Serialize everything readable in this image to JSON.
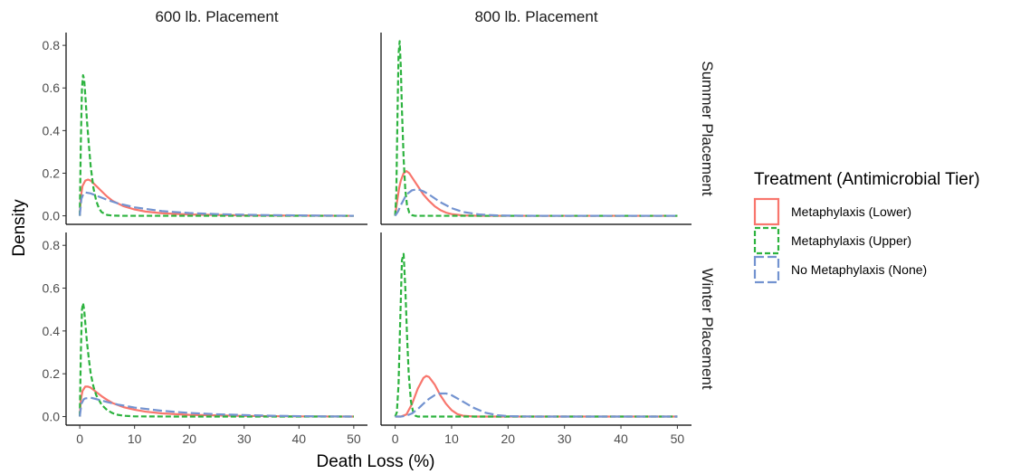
{
  "chart_data": {
    "type": "line",
    "xlabel": "Death Loss (%)",
    "ylabel": "Density",
    "xlim": [
      -2.5,
      52.5
    ],
    "ylim": [
      -0.04,
      0.86
    ],
    "x_ticks": [
      0,
      10,
      20,
      30,
      40,
      50
    ],
    "y_ticks": [
      0.0,
      0.2,
      0.4,
      0.6,
      0.8
    ],
    "x_tick_labels": [
      "0",
      "10",
      "20",
      "30",
      "40",
      "50"
    ],
    "y_tick_labels": [
      "0.0",
      "0.2",
      "0.4",
      "0.6",
      "0.8"
    ],
    "column_facets": [
      "600 lb. Placement",
      "800 lb. Placement"
    ],
    "row_facets": [
      "Summer Placement",
      "Winter Placement"
    ],
    "grid": false,
    "legend": {
      "title": "Treatment (Antimicrobial Tier)",
      "placement": "right",
      "entries": [
        {
          "label": "Metaphylaxis (Lower)",
          "color": "#F8766D",
          "dash": "solid"
        },
        {
          "label": "Metaphylaxis (Upper)",
          "color": "#2DB33F",
          "dash": "dashed"
        },
        {
          "label": "No Metaphylaxis (None)",
          "color": "#7393D0",
          "dash": "longdash"
        }
      ]
    },
    "panels": [
      {
        "column": "600 lb. Placement",
        "row": "Summer Placement",
        "series": [
          {
            "name": "Metaphylaxis (Lower)",
            "x": [
              0,
              0.2,
              0.5,
              1,
              1.5,
              2,
              3,
              4,
              5,
              6,
              8,
              10,
              12,
              15,
              20,
              30,
              40,
              50
            ],
            "y": [
              0,
              0.09,
              0.14,
              0.165,
              0.17,
              0.165,
              0.14,
              0.115,
              0.09,
              0.07,
              0.045,
              0.03,
              0.02,
              0.012,
              0.006,
              0.002,
              0.001,
              0.0
            ]
          },
          {
            "name": "Metaphylaxis (Upper)",
            "x": [
              0,
              0.2,
              0.4,
              0.6,
              0.8,
              1,
              1.3,
              1.7,
              2,
              2.5,
              3,
              3.5,
              4,
              5,
              6,
              8,
              10,
              20,
              50
            ],
            "y": [
              0,
              0.35,
              0.6,
              0.66,
              0.64,
              0.57,
              0.45,
              0.32,
              0.23,
              0.13,
              0.07,
              0.035,
              0.017,
              0.004,
              0.001,
              0.0,
              0.0,
              0.0,
              0.0
            ]
          },
          {
            "name": "No Metaphylaxis (None)",
            "x": [
              0,
              0.3,
              0.7,
              1,
              2,
              3,
              5,
              7,
              10,
              15,
              20,
              25,
              30,
              35,
              40,
              50
            ],
            "y": [
              0,
              0.08,
              0.105,
              0.11,
              0.105,
              0.095,
              0.075,
              0.058,
              0.04,
              0.022,
              0.013,
              0.008,
              0.005,
              0.003,
              0.002,
              0.0
            ]
          }
        ]
      },
      {
        "column": "800 lb. Placement",
        "row": "Summer Placement",
        "series": [
          {
            "name": "Metaphylaxis (Lower)",
            "x": [
              0,
              0.3,
              0.7,
              1,
              1.5,
              2,
              2.5,
              3,
              4,
              5,
              6,
              7,
              8,
              9,
              10,
              12,
              15,
              20,
              50
            ],
            "y": [
              0,
              0.06,
              0.13,
              0.165,
              0.2,
              0.21,
              0.2,
              0.18,
              0.14,
              0.1,
              0.07,
              0.045,
              0.027,
              0.015,
              0.008,
              0.002,
              0.0,
              0.0,
              0.0
            ]
          },
          {
            "name": "Metaphylaxis (Upper)",
            "x": [
              0,
              0.2,
              0.4,
              0.6,
              0.8,
              1,
              1.2,
              1.5,
              1.8,
              2.1,
              2.5,
              3,
              3.5,
              4,
              5,
              50
            ],
            "y": [
              0,
              0.1,
              0.45,
              0.76,
              0.82,
              0.7,
              0.5,
              0.27,
              0.12,
              0.05,
              0.015,
              0.003,
              0.0,
              0.0,
              0.0,
              0.0
            ]
          },
          {
            "name": "No Metaphylaxis (None)",
            "x": [
              0,
              0.5,
              1,
              2,
              3,
              4,
              5,
              6,
              7,
              8,
              10,
              12,
              15,
              18,
              20,
              25,
              50
            ],
            "y": [
              0,
              0.02,
              0.05,
              0.1,
              0.12,
              0.125,
              0.115,
              0.1,
              0.082,
              0.064,
              0.036,
              0.018,
              0.006,
              0.002,
              0.001,
              0.0,
              0.0
            ]
          }
        ]
      },
      {
        "column": "600 lb. Placement",
        "row": "Winter Placement",
        "series": [
          {
            "name": "Metaphylaxis (Lower)",
            "x": [
              0,
              0.2,
              0.5,
              1,
              1.5,
              2,
              3,
              4,
              5,
              6,
              8,
              10,
              12,
              15,
              20,
              30,
              40,
              50
            ],
            "y": [
              0,
              0.08,
              0.12,
              0.14,
              0.14,
              0.135,
              0.115,
              0.095,
              0.078,
              0.063,
              0.044,
              0.032,
              0.023,
              0.015,
              0.008,
              0.003,
              0.001,
              0.0
            ]
          },
          {
            "name": "Metaphylaxis (Upper)",
            "x": [
              0,
              0.2,
              0.4,
              0.6,
              0.8,
              1,
              1.3,
              1.7,
              2,
              2.5,
              3,
              4,
              5,
              6,
              7,
              8,
              10,
              20,
              50
            ],
            "y": [
              0,
              0.3,
              0.5,
              0.53,
              0.5,
              0.44,
              0.35,
              0.26,
              0.2,
              0.14,
              0.1,
              0.055,
              0.03,
              0.016,
              0.008,
              0.004,
              0.001,
              0.0,
              0.0
            ]
          },
          {
            "name": "No Metaphylaxis (None)",
            "x": [
              0,
              0.3,
              0.7,
              1,
              2,
              3,
              5,
              7,
              10,
              15,
              20,
              25,
              30,
              35,
              40,
              50
            ],
            "y": [
              0,
              0.06,
              0.08,
              0.085,
              0.088,
              0.082,
              0.068,
              0.056,
              0.042,
              0.027,
              0.017,
              0.011,
              0.007,
              0.004,
              0.002,
              0.0
            ]
          }
        ]
      },
      {
        "column": "800 lb. Placement",
        "row": "Winter Placement",
        "series": [
          {
            "name": "Metaphylaxis (Lower)",
            "x": [
              0,
              1,
              2,
              3,
              4,
              5,
              5.5,
              6,
              7,
              8,
              9,
              10,
              11,
              12,
              14,
              16,
              50
            ],
            "y": [
              0,
              0.0,
              0.01,
              0.06,
              0.13,
              0.18,
              0.19,
              0.185,
              0.15,
              0.1,
              0.06,
              0.03,
              0.012,
              0.004,
              0.0,
              0.0,
              0.0
            ]
          },
          {
            "name": "Metaphylaxis (Upper)",
            "x": [
              0,
              0.3,
              0.6,
              0.9,
              1.2,
              1.5,
              1.8,
              2.1,
              2.4,
              2.8,
              3.2,
              3.6,
              4,
              5,
              50
            ],
            "y": [
              0,
              0.02,
              0.15,
              0.45,
              0.73,
              0.76,
              0.6,
              0.38,
              0.2,
              0.07,
              0.02,
              0.004,
              0.0,
              0.0,
              0.0
            ]
          },
          {
            "name": "No Metaphylaxis (None)",
            "x": [
              0,
              1,
              2,
              3,
              4,
              5,
              6,
              7,
              8,
              9,
              10,
              12,
              14,
              16,
              18,
              20,
              25,
              50
            ],
            "y": [
              0,
              0.0,
              0.004,
              0.015,
              0.035,
              0.06,
              0.083,
              0.1,
              0.108,
              0.108,
              0.1,
              0.07,
              0.04,
              0.018,
              0.007,
              0.002,
              0.0,
              0.0
            ]
          }
        ]
      }
    ]
  }
}
